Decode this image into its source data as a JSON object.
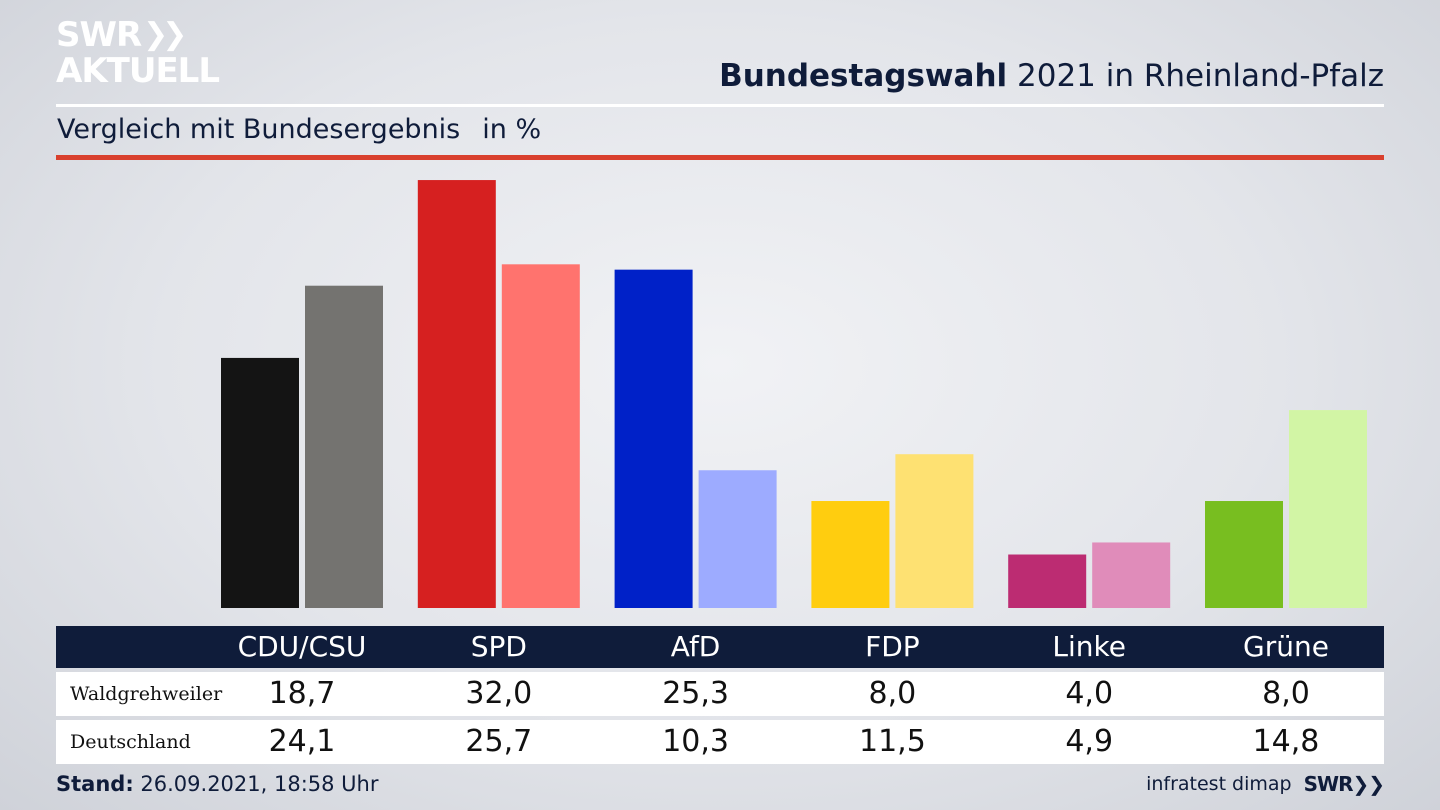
{
  "logo": {
    "line1": "SWR",
    "line2": "AKTUELL"
  },
  "title": {
    "bold": "Bundestagswahl",
    "rest": " 2021 in Rheinland-Pfalz"
  },
  "subtitle": {
    "text": "Vergleich mit Bundesergebnis",
    "unit": "in %"
  },
  "colors": {
    "header_bg": "#0f1c3a",
    "accent_rule": "#d9402e",
    "CDU/CSU": [
      "#141414",
      "#747370"
    ],
    "SPD": [
      "#d62020",
      "#ff736e"
    ],
    "AfD": [
      "#0021c8",
      "#9dabff"
    ],
    "FDP": [
      "#ffcd0f",
      "#fee172"
    ],
    "Linke": [
      "#bc2c72",
      "#e08cba"
    ],
    "Grüne": [
      "#78be20",
      "#d2f5a5"
    ]
  },
  "chart_data": {
    "type": "bar",
    "categories": [
      "CDU/CSU",
      "SPD",
      "AfD",
      "FDP",
      "Linke",
      "Grüne"
    ],
    "series": [
      {
        "name": "Waldgrehweiler",
        "values": [
          18.7,
          32.0,
          25.3,
          8.0,
          4.0,
          8.0
        ],
        "labels": [
          "18,7",
          "32,0",
          "25,3",
          "8,0",
          "4,0",
          "8,0"
        ]
      },
      {
        "name": "Deutschland",
        "values": [
          24.1,
          25.7,
          10.3,
          11.5,
          4.9,
          14.8
        ],
        "labels": [
          "24,1",
          "25,7",
          "10,3",
          "11,5",
          "4,9",
          "14,8"
        ]
      }
    ],
    "title": "Bundestagswahl 2021 in Rheinland-Pfalz",
    "ylabel": "in %",
    "ylim": [
      0,
      33.5
    ],
    "grid": false
  },
  "footer": {
    "stand_label": "Stand:",
    "stand_value": " 26.09.2021, 18:58 Uhr",
    "source": "infratest dimap",
    "brand": "SWR"
  }
}
